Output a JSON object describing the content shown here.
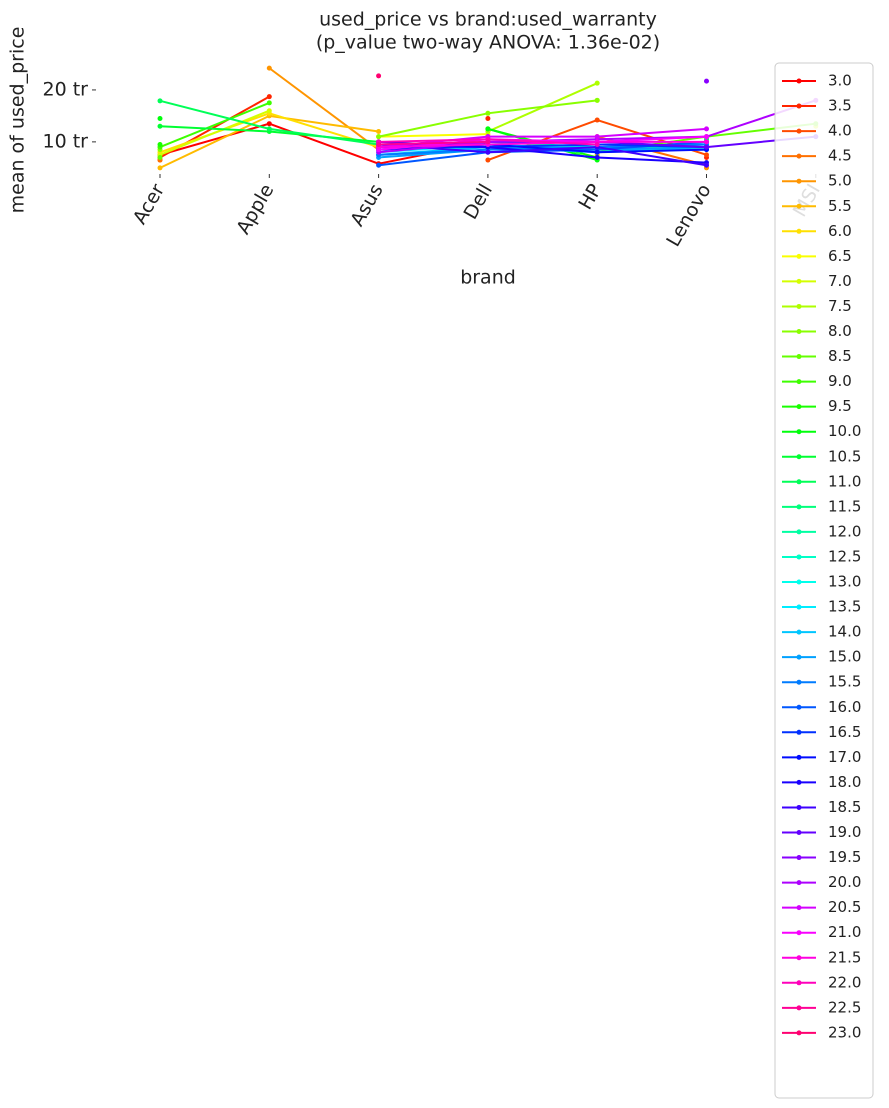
{
  "chart_data": {
    "type": "line",
    "title": "used_price vs brand:used_warranty",
    "subtitle": "(p_value two-way ANOVA: 1.36e-02)",
    "x_label": "brand",
    "y_label": "mean of used_price",
    "categories": [
      "Acer",
      "Apple",
      "Asus",
      "Dell",
      "HP",
      "Lenovo",
      "MSI"
    ],
    "ylim": [
      4.2,
      24.8
    ],
    "yticks": [
      {
        "value": 10,
        "label": "10 tr"
      },
      {
        "value": 20,
        "label": "20 tr"
      }
    ],
    "grid": false,
    "legend": "right",
    "series": [
      {
        "name": "3.0",
        "color": "#ff0000",
        "values": [
          7.5,
          13.5,
          5.8,
          10,
          null,
          null,
          null
        ]
      },
      {
        "name": "3.5",
        "color": "#ff2500",
        "values": [
          7,
          18.7,
          null,
          14.5,
          null,
          7,
          null
        ]
      },
      {
        "name": "4.0",
        "color": "#ff4b00",
        "values": [
          6.5,
          null,
          null,
          6.5,
          14.2,
          7.5,
          null
        ]
      },
      {
        "name": "4.5",
        "color": "#ff7000",
        "values": [
          6.5,
          null,
          8.5,
          null,
          11,
          5.5,
          null
        ]
      },
      {
        "name": "5.0",
        "color": "#ff9500",
        "values": [
          null,
          24.2,
          8.5,
          null,
          null,
          5,
          null
        ]
      },
      {
        "name": "5.5",
        "color": "#ffbb00",
        "values": [
          5,
          15,
          12,
          null,
          7.5,
          null,
          null
        ]
      },
      {
        "name": "6.0",
        "color": "#ffe000",
        "values": [
          8,
          15.5,
          9,
          null,
          null,
          null,
          null
        ]
      },
      {
        "name": "6.5",
        "color": "#f9ff00",
        "values": [
          null,
          null,
          11,
          11.5,
          null,
          6,
          null
        ]
      },
      {
        "name": "7.0",
        "color": "#d4ff00",
        "values": [
          7.5,
          16,
          null,
          null,
          18,
          null,
          13
        ]
      },
      {
        "name": "7.5",
        "color": "#aeff00",
        "values": [
          null,
          null,
          null,
          12,
          21.3,
          null,
          null
        ]
      },
      {
        "name": "8.0",
        "color": "#89ff00",
        "values": [
          8.5,
          null,
          11,
          15.5,
          18,
          null,
          null
        ]
      },
      {
        "name": "8.5",
        "color": "#64ff00",
        "values": [
          7,
          null,
          null,
          null,
          8,
          11,
          13.5
        ]
      },
      {
        "name": "9.0",
        "color": "#3eff00",
        "values": [
          9,
          17.5,
          null,
          11,
          null,
          null,
          null
        ]
      },
      {
        "name": "9.5",
        "color": "#19ff00",
        "values": [
          9.5,
          null,
          null,
          12.5,
          7,
          null,
          null
        ]
      },
      {
        "name": "10.0",
        "color": "#00ff0c",
        "values": [
          14.5,
          null,
          null,
          12.5,
          6.5,
          null,
          null
        ]
      },
      {
        "name": "10.5",
        "color": "#00ff32",
        "values": [
          13,
          12,
          10,
          null,
          null,
          9,
          null
        ]
      },
      {
        "name": "11.0",
        "color": "#00ff57",
        "values": [
          17.9,
          12.5,
          9.5,
          null,
          null,
          10.5,
          null
        ]
      },
      {
        "name": "11.5",
        "color": "#00ff7c",
        "values": [
          null,
          null,
          9.5,
          9,
          8.5,
          null,
          null
        ]
      },
      {
        "name": "12.0",
        "color": "#00ffa2",
        "values": [
          null,
          null,
          9,
          10,
          9,
          9,
          null
        ]
      },
      {
        "name": "12.5",
        "color": "#00ffc7",
        "values": [
          null,
          null,
          9,
          9.5,
          8.5,
          8.5,
          null
        ]
      },
      {
        "name": "13.0",
        "color": "#00ffec",
        "values": [
          null,
          null,
          8.5,
          9,
          9,
          9.5,
          null
        ]
      },
      {
        "name": "13.5",
        "color": "#00ecff",
        "values": [
          null,
          null,
          8,
          9.5,
          8.5,
          10,
          null
        ]
      },
      {
        "name": "14.0",
        "color": "#00c6ff",
        "values": [
          null,
          null,
          7.5,
          9,
          8,
          9,
          null
        ]
      },
      {
        "name": "15.0",
        "color": "#00a1ff",
        "values": [
          null,
          null,
          7,
          8.5,
          8.5,
          9,
          null
        ]
      },
      {
        "name": "15.5",
        "color": "#007cff",
        "values": [
          null,
          null,
          7.5,
          8.5,
          9,
          9.5,
          null
        ]
      },
      {
        "name": "16.0",
        "color": "#0057ff",
        "values": [
          null,
          null,
          5.5,
          8,
          8.5,
          10,
          null
        ]
      },
      {
        "name": "16.5",
        "color": "#0031ff",
        "values": [
          null,
          null,
          9,
          9,
          9.5,
          9,
          null
        ]
      },
      {
        "name": "17.0",
        "color": "#000cff",
        "values": [
          null,
          null,
          8.5,
          9.5,
          8,
          8.5,
          null
        ]
      },
      {
        "name": "18.0",
        "color": "#1900ff",
        "values": [
          null,
          null,
          10,
          9,
          7,
          6,
          null
        ]
      },
      {
        "name": "18.5",
        "color": "#3e00ff",
        "values": [
          null,
          null,
          9.5,
          8,
          9,
          5.5,
          null
        ]
      },
      {
        "name": "19.0",
        "color": "#6400ff",
        "values": [
          null,
          null,
          9,
          10,
          10,
          9,
          11
        ]
      },
      {
        "name": "19.5",
        "color": "#8900ff",
        "values": [
          null,
          null,
          null,
          11,
          null,
          21.7,
          null
        ]
      },
      {
        "name": "20.0",
        "color": "#ae00ff",
        "values": [
          null,
          null,
          8,
          10,
          10.5,
          11,
          18
        ]
      },
      {
        "name": "20.5",
        "color": "#d400ff",
        "values": [
          null,
          null,
          9,
          11,
          11,
          12.5,
          null
        ]
      },
      {
        "name": "21.0",
        "color": "#f900ff",
        "values": [
          null,
          null,
          8.5,
          10.5,
          10,
          11,
          null
        ]
      },
      {
        "name": "21.5",
        "color": "#ff00e0",
        "values": [
          null,
          null,
          9,
          9.5,
          10,
          10,
          null
        ]
      },
      {
        "name": "22.0",
        "color": "#ff00bb",
        "values": [
          null,
          null,
          10,
          10.5,
          9.5,
          null,
          null
        ]
      },
      {
        "name": "22.5",
        "color": "#ff0095",
        "values": [
          null,
          null,
          9.5,
          10,
          null,
          null,
          null
        ]
      },
      {
        "name": "23.0",
        "color": "#ff0070",
        "values": [
          null,
          null,
          22.7,
          null,
          null,
          null,
          null
        ]
      }
    ]
  }
}
